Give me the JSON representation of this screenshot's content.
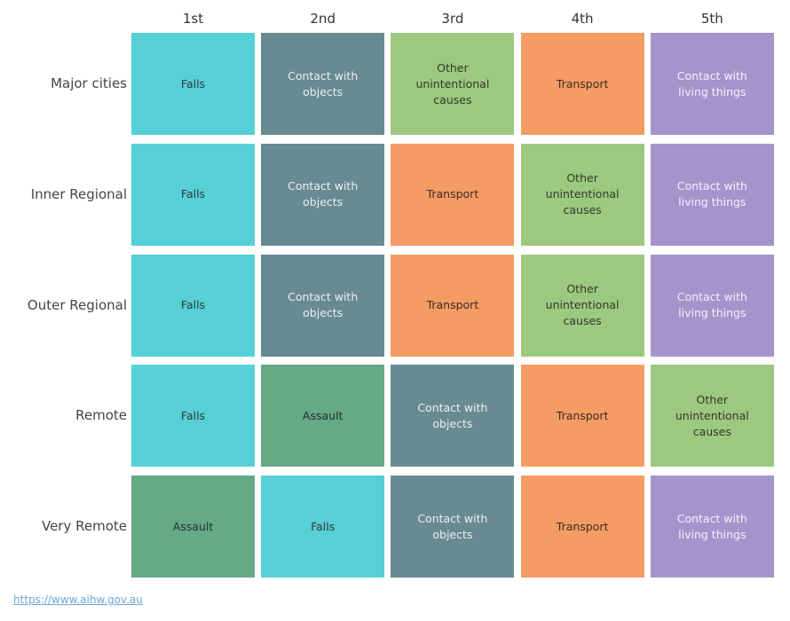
{
  "columns": [
    "1st",
    "2nd",
    "3rd",
    "4th",
    "5th"
  ],
  "rows": [
    {
      "label": "Major cities",
      "cells": [
        {
          "label": "Falls",
          "color": "#57cfd6",
          "text_color": "#2b3a3c"
        },
        {
          "label": "Contact with objects",
          "color": "#688a92",
          "text_color": "#e9f0f2"
        },
        {
          "label": "Other unintentional causes",
          "color": "#9dc880",
          "text_color": "#2f3a28"
        },
        {
          "label": "Transport",
          "color": "#f59b64",
          "text_color": "#3c2c22"
        },
        {
          "label": "Contact with living things",
          "color": "#a394cc",
          "text_color": "#f4f1fb"
        }
      ]
    },
    {
      "label": "Inner Regional",
      "cells": [
        {
          "label": "Falls",
          "color": "#57cfd6",
          "text_color": "#2b3a3c"
        },
        {
          "label": "Contact with objects",
          "color": "#688a92",
          "text_color": "#e9f0f2"
        },
        {
          "label": "Transport",
          "color": "#f59b64",
          "text_color": "#3c2c22"
        },
        {
          "label": "Other unintentional causes",
          "color": "#9dc880",
          "text_color": "#2f3a28"
        },
        {
          "label": "Contact with living things",
          "color": "#a394cc",
          "text_color": "#f4f1fb"
        }
      ]
    },
    {
      "label": "Outer Regional",
      "cells": [
        {
          "label": "Falls",
          "color": "#57cfd6",
          "text_color": "#2b3a3c"
        },
        {
          "label": "Contact with objects",
          "color": "#688a92",
          "text_color": "#e9f0f2"
        },
        {
          "label": "Transport",
          "color": "#f59b64",
          "text_color": "#3c2c22"
        },
        {
          "label": "Other unintentional causes",
          "color": "#9dc880",
          "text_color": "#2f3a28"
        },
        {
          "label": "Contact with living things",
          "color": "#a394cc",
          "text_color": "#f4f1fb"
        }
      ]
    },
    {
      "label": "Remote",
      "cells": [
        {
          "label": "Falls",
          "color": "#57cfd6",
          "text_color": "#2b3a3c"
        },
        {
          "label": "Assault",
          "color": "#66a985",
          "text_color": "#1f3326"
        },
        {
          "label": "Contact with objects",
          "color": "#688a92",
          "text_color": "#e9f0f2"
        },
        {
          "label": "Transport",
          "color": "#f59b64",
          "text_color": "#3c2c22"
        },
        {
          "label": "Other unintentional causes",
          "color": "#9dc880",
          "text_color": "#2f3a28"
        }
      ]
    },
    {
      "label": "Very Remote",
      "cells": [
        {
          "label": "Assault",
          "color": "#66a985",
          "text_color": "#1f3326"
        },
        {
          "label": "Falls",
          "color": "#57cfd6",
          "text_color": "#2b3a3c"
        },
        {
          "label": "Contact with objects",
          "color": "#688a92",
          "text_color": "#e9f0f2"
        },
        {
          "label": "Transport",
          "color": "#f59b64",
          "text_color": "#3c2c22"
        },
        {
          "label": "Contact with living things",
          "color": "#a394cc",
          "text_color": "#f4f1fb"
        }
      ]
    }
  ],
  "footer": {
    "link": "https://www.aihw.gov.au"
  }
}
